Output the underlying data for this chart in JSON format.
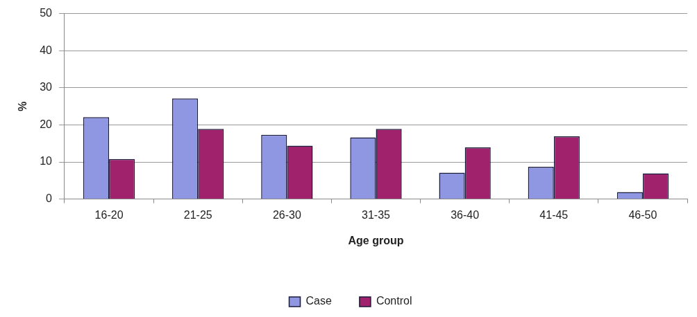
{
  "chart_data": {
    "type": "bar",
    "xlabel": "Age group",
    "ylabel": "%",
    "categories": [
      "16-20",
      "21-25",
      "26-30",
      "31-35",
      "36-40",
      "41-45",
      "46-50"
    ],
    "series": [
      {
        "name": "Case",
        "color": "#8f97e3",
        "values": [
          22.1,
          27.1,
          17.3,
          16.6,
          7.1,
          8.7,
          1.9
        ]
      },
      {
        "name": "Control",
        "color": "#a0216c",
        "values": [
          10.8,
          18.9,
          14.4,
          18.9,
          13.9,
          16.9,
          6.9
        ]
      }
    ],
    "ylim": [
      0,
      50
    ],
    "yticks": [
      0,
      10,
      20,
      30,
      40,
      50
    ],
    "grid": "y",
    "legend": "bottom"
  }
}
